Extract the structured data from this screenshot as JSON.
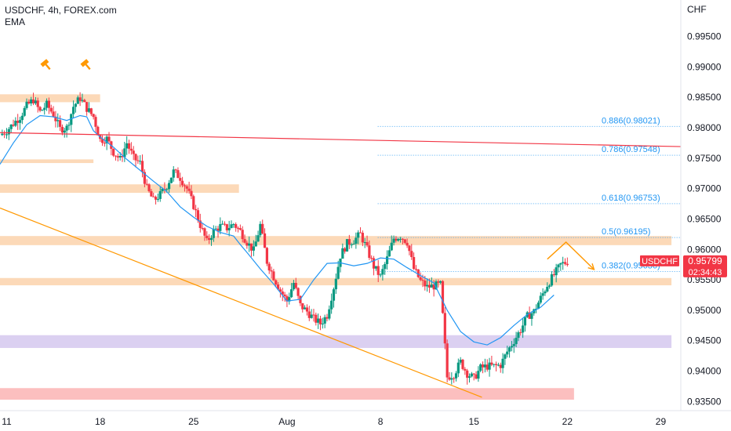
{
  "header": {
    "symbol_line": "USDCHF, 4h, FOREX.com",
    "indicator": "EMA"
  },
  "chart_data": {
    "type": "candlestick",
    "symbol": "USDCHF",
    "currency_label": "CHF",
    "ylim": [
      0.9335,
      1.001
    ],
    "y_ticks": [
      {
        "value": 0.995,
        "label": "0.99500"
      },
      {
        "value": 0.99,
        "label": "0.99000"
      },
      {
        "value": 0.985,
        "label": "0.98500"
      },
      {
        "value": 0.98,
        "label": "0.98000"
      },
      {
        "value": 0.975,
        "label": "0.97500"
      },
      {
        "value": 0.97,
        "label": "0.97000"
      },
      {
        "value": 0.965,
        "label": "0.96500"
      },
      {
        "value": 0.96,
        "label": "0.96000"
      },
      {
        "value": 0.955,
        "label": "0.95500"
      },
      {
        "value": 0.95,
        "label": "0.95000"
      },
      {
        "value": 0.945,
        "label": "0.94500"
      },
      {
        "value": 0.94,
        "label": "0.94000"
      },
      {
        "value": 0.935,
        "label": "0.93500"
      }
    ],
    "x_ticks": [
      {
        "day": 11,
        "label": "11"
      },
      {
        "day": 18,
        "label": "18"
      },
      {
        "day": 25,
        "label": "25"
      },
      {
        "day": 32,
        "label": "Aug"
      },
      {
        "day": 39,
        "label": "8"
      },
      {
        "day": 46,
        "label": "15"
      },
      {
        "day": 53,
        "label": "22"
      },
      {
        "day": 60,
        "label": "29"
      }
    ],
    "x_range": [
      10.5,
      61.5
    ],
    "price_tag": {
      "name": "USDCHF",
      "price": "0.95799",
      "timer": "02:34:43",
      "value": 0.95799
    },
    "fib_levels": [
      {
        "label": "0.886(0.98021)",
        "value": 0.98021
      },
      {
        "label": "0.786(0.97548)",
        "value": 0.97548
      },
      {
        "label": "0.618(0.96753)",
        "value": 0.96753
      },
      {
        "label": "0.5(0.96195)",
        "value": 0.96195
      },
      {
        "label": "0.382(0.95636)",
        "value": 0.95636
      }
    ],
    "zones": [
      {
        "from_day": 10.5,
        "to_day": 18.0,
        "low": 0.9842,
        "high": 0.9855,
        "color": "#fbd2ac"
      },
      {
        "from_day": 10.5,
        "to_day": 17.5,
        "low": 0.9742,
        "high": 0.9748,
        "color": "#fbd2ac"
      },
      {
        "from_day": 10.5,
        "to_day": 28.4,
        "low": 0.9693,
        "high": 0.9707,
        "color": "#fbd2ac"
      },
      {
        "from_day": 10.5,
        "to_day": 60.8,
        "low": 0.9607,
        "high": 0.9622,
        "color": "#fbd2ac"
      },
      {
        "from_day": 10.5,
        "to_day": 60.8,
        "low": 0.9541,
        "high": 0.9553,
        "color": "#fbd2ac"
      },
      {
        "from_day": 10.5,
        "to_day": 60.8,
        "low": 0.9438,
        "high": 0.9459,
        "color": "#d5c8ee"
      },
      {
        "from_day": 10.5,
        "to_day": 53.5,
        "low": 0.9353,
        "high": 0.9372,
        "color": "#fcb4b4"
      }
    ],
    "trendlines": [
      {
        "name": "red-resistance",
        "x1": 10.5,
        "y1": 0.9792,
        "x2": 61.5,
        "y2": 0.9769,
        "color": "#f23645"
      },
      {
        "name": "orange-support",
        "x1": 10.5,
        "y1": 0.9668,
        "x2": 46.6,
        "y2": 0.9357,
        "color": "#ff9800"
      }
    ],
    "projection": [
      {
        "day": 51.5,
        "value": 0.9584
      },
      {
        "day": 52.9,
        "value": 0.9612
      },
      {
        "day": 55.0,
        "value": 0.9567
      }
    ],
    "ema": [
      [
        10.5,
        0.974
      ],
      [
        11.5,
        0.9775
      ],
      [
        12.5,
        0.9805
      ],
      [
        13.5,
        0.982
      ],
      [
        14.5,
        0.9818
      ],
      [
        15.5,
        0.9812
      ],
      [
        16.5,
        0.982
      ],
      [
        17.0,
        0.9818
      ],
      [
        17.5,
        0.9795
      ],
      [
        18.0,
        0.9785
      ],
      [
        19.0,
        0.9768
      ],
      [
        20.0,
        0.9748
      ],
      [
        21.0,
        0.973
      ],
      [
        22.0,
        0.9712
      ],
      [
        23.0,
        0.9695
      ],
      [
        24.0,
        0.967
      ],
      [
        25.0,
        0.9653
      ],
      [
        26.0,
        0.9638
      ],
      [
        27.0,
        0.9628
      ],
      [
        28.0,
        0.9622
      ],
      [
        28.5,
        0.9608
      ],
      [
        29.0,
        0.9595
      ],
      [
        30.0,
        0.9568
      ],
      [
        31.0,
        0.9543
      ],
      [
        32.0,
        0.9515
      ],
      [
        33.0,
        0.9518
      ],
      [
        34.0,
        0.955
      ],
      [
        35.0,
        0.9577
      ],
      [
        36.0,
        0.9578
      ],
      [
        37.0,
        0.9573
      ],
      [
        38.0,
        0.9577
      ],
      [
        39.0,
        0.9586
      ],
      [
        40.0,
        0.9584
      ],
      [
        41.0,
        0.957
      ],
      [
        42.0,
        0.9557
      ],
      [
        43.0,
        0.9545
      ],
      [
        44.0,
        0.95
      ],
      [
        45.0,
        0.9465
      ],
      [
        46.0,
        0.9448
      ],
      [
        47.0,
        0.9443
      ],
      [
        48.0,
        0.9455
      ],
      [
        49.0,
        0.9475
      ],
      [
        50.0,
        0.9493
      ],
      [
        51.0,
        0.9505
      ],
      [
        52.0,
        0.9525
      ]
    ],
    "close_path": [
      [
        10.5,
        0.9788
      ],
      [
        11.0,
        0.9795
      ],
      [
        11.5,
        0.9807
      ],
      [
        12.0,
        0.9818
      ],
      [
        12.5,
        0.9836
      ],
      [
        13.0,
        0.9846
      ],
      [
        13.5,
        0.9826
      ],
      [
        14.0,
        0.9838
      ],
      [
        14.5,
        0.9822
      ],
      [
        15.0,
        0.9798
      ],
      [
        15.5,
        0.98
      ],
      [
        16.0,
        0.9835
      ],
      [
        16.5,
        0.9849
      ],
      [
        17.0,
        0.9832
      ],
      [
        17.5,
        0.9818
      ],
      [
        18.0,
        0.978
      ],
      [
        18.5,
        0.9782
      ],
      [
        19.0,
        0.976
      ],
      [
        19.5,
        0.9748
      ],
      [
        20.0,
        0.9775
      ],
      [
        20.5,
        0.975
      ],
      [
        21.0,
        0.9742
      ],
      [
        21.5,
        0.97
      ],
      [
        22.0,
        0.968
      ],
      [
        22.5,
        0.969
      ],
      [
        23.0,
        0.9705
      ],
      [
        23.5,
        0.9728
      ],
      [
        24.0,
        0.9718
      ],
      [
        24.5,
        0.97
      ],
      [
        25.0,
        0.9672
      ],
      [
        25.5,
        0.964
      ],
      [
        26.0,
        0.9612
      ],
      [
        26.5,
        0.963
      ],
      [
        27.0,
        0.9638
      ],
      [
        27.5,
        0.9635
      ],
      [
        28.0,
        0.9642
      ],
      [
        28.5,
        0.963
      ],
      [
        29.0,
        0.9612
      ],
      [
        29.5,
        0.9598
      ],
      [
        30.0,
        0.964
      ],
      [
        30.5,
        0.958
      ],
      [
        31.0,
        0.9555
      ],
      [
        31.5,
        0.9532
      ],
      [
        32.0,
        0.9515
      ],
      [
        32.5,
        0.9545
      ],
      [
        33.0,
        0.9508
      ],
      [
        33.5,
        0.9498
      ],
      [
        34.0,
        0.9486
      ],
      [
        34.5,
        0.9478
      ],
      [
        35.0,
        0.9492
      ],
      [
        35.5,
        0.9538
      ],
      [
        36.0,
        0.959
      ],
      [
        36.5,
        0.961
      ],
      [
        37.0,
        0.9615
      ],
      [
        37.5,
        0.9625
      ],
      [
        38.0,
        0.96
      ],
      [
        38.5,
        0.9572
      ],
      [
        39.0,
        0.9555
      ],
      [
        39.5,
        0.9585
      ],
      [
        40.0,
        0.9618
      ],
      [
        40.5,
        0.9622
      ],
      [
        41.0,
        0.9612
      ],
      [
        41.5,
        0.9568
      ],
      [
        42.0,
        0.9548
      ],
      [
        42.5,
        0.9538
      ],
      [
        43.0,
        0.954
      ],
      [
        43.5,
        0.9542
      ],
      [
        44.0,
        0.939
      ],
      [
        44.5,
        0.9395
      ],
      [
        45.0,
        0.9415
      ],
      [
        45.5,
        0.9396
      ],
      [
        46.0,
        0.9388
      ],
      [
        46.5,
        0.9405
      ],
      [
        47.0,
        0.9408
      ],
      [
        47.5,
        0.9408
      ],
      [
        48.0,
        0.941
      ],
      [
        48.5,
        0.9432
      ],
      [
        49.0,
        0.945
      ],
      [
        49.5,
        0.9468
      ],
      [
        50.0,
        0.949
      ],
      [
        50.5,
        0.9498
      ],
      [
        51.0,
        0.952
      ],
      [
        51.5,
        0.9542
      ],
      [
        52.0,
        0.9558
      ],
      [
        52.5,
        0.9575
      ],
      [
        53.0,
        0.958
      ]
    ]
  }
}
